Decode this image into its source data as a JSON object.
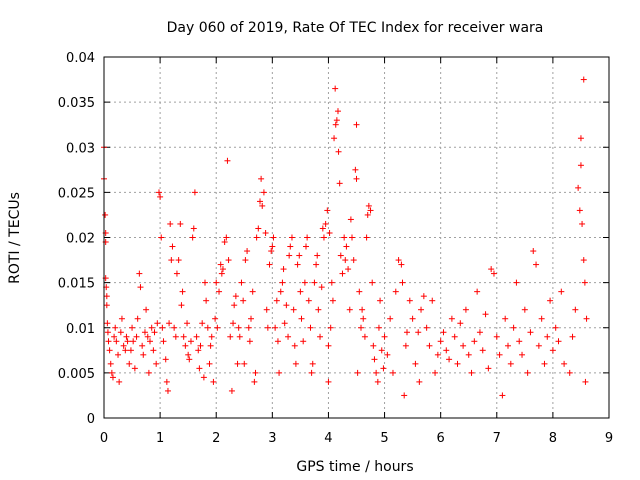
{
  "chart_data": {
    "type": "scatter",
    "title": "Day 060 of 2019, Rate Of TEC Index for receiver wara",
    "xlabel": "GPS time / hours",
    "ylabel": "ROTI / TECUs",
    "xlim": [
      0,
      9
    ],
    "ylim": [
      0,
      0.04
    ],
    "x_ticks": [
      0,
      1,
      2,
      3,
      4,
      5,
      6,
      7,
      8,
      9
    ],
    "y_ticks": [
      0,
      0.005,
      0.01,
      0.015,
      0.02,
      0.025,
      0.03,
      0.035,
      0.04
    ],
    "x_tick_labels": [
      "0",
      "1",
      "2",
      "3",
      "4",
      "5",
      "6",
      "7",
      "8",
      "9"
    ],
    "y_tick_labels": [
      "0",
      "0.005",
      "0.01",
      "0.015",
      "0.02",
      "0.025",
      "0.03",
      "0.035",
      "0.04"
    ],
    "grid": true,
    "marker": "+",
    "color": "#ff0000",
    "series": [
      {
        "name": "ROTI",
        "points": [
          [
            0.0,
            0.03
          ],
          [
            0.0,
            0.0265
          ],
          [
            0.02,
            0.0225
          ],
          [
            0.03,
            0.0205
          ],
          [
            0.03,
            0.0195
          ],
          [
            0.03,
            0.0155
          ],
          [
            0.04,
            0.0145
          ],
          [
            0.05,
            0.0135
          ],
          [
            0.05,
            0.0125
          ],
          [
            0.06,
            0.0105
          ],
          [
            0.07,
            0.0095
          ],
          [
            0.08,
            0.0085
          ],
          [
            0.1,
            0.0075
          ],
          [
            0.12,
            0.006
          ],
          [
            0.14,
            0.005
          ],
          [
            0.16,
            0.0045
          ],
          [
            0.18,
            0.009
          ],
          [
            0.2,
            0.01
          ],
          [
            0.22,
            0.0085
          ],
          [
            0.25,
            0.007
          ],
          [
            0.27,
            0.004
          ],
          [
            0.3,
            0.0095
          ],
          [
            0.32,
            0.011
          ],
          [
            0.35,
            0.008
          ],
          [
            0.38,
            0.0075
          ],
          [
            0.4,
            0.009
          ],
          [
            0.42,
            0.0085
          ],
          [
            0.45,
            0.006
          ],
          [
            0.48,
            0.0075
          ],
          [
            0.5,
            0.01
          ],
          [
            0.52,
            0.0085
          ],
          [
            0.55,
            0.0055
          ],
          [
            0.58,
            0.009
          ],
          [
            0.6,
            0.011
          ],
          [
            0.63,
            0.016
          ],
          [
            0.65,
            0.0145
          ],
          [
            0.68,
            0.008
          ],
          [
            0.7,
            0.007
          ],
          [
            0.73,
            0.0095
          ],
          [
            0.75,
            0.012
          ],
          [
            0.78,
            0.009
          ],
          [
            0.8,
            0.005
          ],
          [
            0.82,
            0.0085
          ],
          [
            0.85,
            0.01
          ],
          [
            0.88,
            0.0075
          ],
          [
            0.9,
            0.0095
          ],
          [
            0.93,
            0.006
          ],
          [
            0.95,
            0.0105
          ],
          [
            0.98,
            0.025
          ],
          [
            1.0,
            0.0245
          ],
          [
            1.02,
            0.02
          ],
          [
            1.04,
            0.01
          ],
          [
            1.06,
            0.0085
          ],
          [
            1.1,
            0.0065
          ],
          [
            1.12,
            0.004
          ],
          [
            1.14,
            0.003
          ],
          [
            1.16,
            0.0105
          ],
          [
            1.18,
            0.0215
          ],
          [
            1.2,
            0.0175
          ],
          [
            1.22,
            0.019
          ],
          [
            1.25,
            0.01
          ],
          [
            1.28,
            0.009
          ],
          [
            1.3,
            0.016
          ],
          [
            1.33,
            0.0175
          ],
          [
            1.36,
            0.0215
          ],
          [
            1.38,
            0.0125
          ],
          [
            1.4,
            0.014
          ],
          [
            1.42,
            0.009
          ],
          [
            1.45,
            0.008
          ],
          [
            1.48,
            0.0105
          ],
          [
            1.5,
            0.007
          ],
          [
            1.52,
            0.0065
          ],
          [
            1.55,
            0.0085
          ],
          [
            1.58,
            0.02
          ],
          [
            1.6,
            0.021
          ],
          [
            1.62,
            0.025
          ],
          [
            1.65,
            0.009
          ],
          [
            1.68,
            0.0075
          ],
          [
            1.7,
            0.0055
          ],
          [
            1.72,
            0.008
          ],
          [
            1.75,
            0.0105
          ],
          [
            1.78,
            0.0045
          ],
          [
            1.8,
            0.015
          ],
          [
            1.82,
            0.013
          ],
          [
            1.85,
            0.01
          ],
          [
            1.88,
            0.006
          ],
          [
            1.9,
            0.008
          ],
          [
            1.92,
            0.009
          ],
          [
            1.95,
            0.004
          ],
          [
            1.98,
            0.011
          ],
          [
            2.0,
            0.015
          ],
          [
            2.02,
            0.01
          ],
          [
            2.05,
            0.014
          ],
          [
            2.08,
            0.017
          ],
          [
            2.1,
            0.016
          ],
          [
            2.12,
            0.0165
          ],
          [
            2.15,
            0.0195
          ],
          [
            2.18,
            0.02
          ],
          [
            2.2,
            0.0285
          ],
          [
            2.22,
            0.0175
          ],
          [
            2.25,
            0.009
          ],
          [
            2.28,
            0.003
          ],
          [
            2.3,
            0.0105
          ],
          [
            2.32,
            0.0125
          ],
          [
            2.35,
            0.0135
          ],
          [
            2.38,
            0.006
          ],
          [
            2.4,
            0.01
          ],
          [
            2.42,
            0.009
          ],
          [
            2.45,
            0.015
          ],
          [
            2.48,
            0.013
          ],
          [
            2.5,
            0.006
          ],
          [
            2.52,
            0.0175
          ],
          [
            2.55,
            0.0185
          ],
          [
            2.58,
            0.01
          ],
          [
            2.6,
            0.0085
          ],
          [
            2.62,
            0.011
          ],
          [
            2.65,
            0.014
          ],
          [
            2.68,
            0.004
          ],
          [
            2.7,
            0.005
          ],
          [
            2.72,
            0.02
          ],
          [
            2.75,
            0.021
          ],
          [
            2.78,
            0.024
          ],
          [
            2.8,
            0.0265
          ],
          [
            2.82,
            0.0235
          ],
          [
            2.85,
            0.025
          ],
          [
            2.88,
            0.0205
          ],
          [
            2.9,
            0.012
          ],
          [
            2.92,
            0.01
          ],
          [
            2.95,
            0.017
          ],
          [
            2.98,
            0.0185
          ],
          [
            3.0,
            0.019
          ],
          [
            3.02,
            0.02
          ],
          [
            3.05,
            0.01
          ],
          [
            3.08,
            0.013
          ],
          [
            3.1,
            0.0085
          ],
          [
            3.12,
            0.005
          ],
          [
            3.15,
            0.014
          ],
          [
            3.18,
            0.015
          ],
          [
            3.2,
            0.0165
          ],
          [
            3.22,
            0.0105
          ],
          [
            3.25,
            0.0125
          ],
          [
            3.28,
            0.009
          ],
          [
            3.3,
            0.018
          ],
          [
            3.32,
            0.019
          ],
          [
            3.35,
            0.02
          ],
          [
            3.38,
            0.012
          ],
          [
            3.4,
            0.008
          ],
          [
            3.42,
            0.006
          ],
          [
            3.45,
            0.017
          ],
          [
            3.48,
            0.018
          ],
          [
            3.5,
            0.014
          ],
          [
            3.52,
            0.011
          ],
          [
            3.55,
            0.0085
          ],
          [
            3.58,
            0.015
          ],
          [
            3.6,
            0.019
          ],
          [
            3.62,
            0.02
          ],
          [
            3.65,
            0.013
          ],
          [
            3.68,
            0.01
          ],
          [
            3.7,
            0.005
          ],
          [
            3.72,
            0.006
          ],
          [
            3.75,
            0.015
          ],
          [
            3.78,
            0.017
          ],
          [
            3.8,
            0.018
          ],
          [
            3.82,
            0.012
          ],
          [
            3.85,
            0.009
          ],
          [
            3.88,
            0.0145
          ],
          [
            3.9,
            0.021
          ],
          [
            3.92,
            0.02
          ],
          [
            3.95,
            0.0215
          ],
          [
            3.98,
            0.023
          ],
          [
            4.0,
            0.004
          ],
          [
            4.0,
            0.008
          ],
          [
            4.02,
            0.0205
          ],
          [
            4.04,
            0.01
          ],
          [
            4.06,
            0.015
          ],
          [
            4.08,
            0.013
          ],
          [
            4.1,
            0.031
          ],
          [
            4.12,
            0.0365
          ],
          [
            4.13,
            0.0325
          ],
          [
            4.15,
            0.033
          ],
          [
            4.17,
            0.034
          ],
          [
            4.18,
            0.0295
          ],
          [
            4.2,
            0.026
          ],
          [
            4.22,
            0.018
          ],
          [
            4.25,
            0.016
          ],
          [
            4.28,
            0.02
          ],
          [
            4.3,
            0.0175
          ],
          [
            4.32,
            0.019
          ],
          [
            4.35,
            0.0165
          ],
          [
            4.38,
            0.012
          ],
          [
            4.4,
            0.022
          ],
          [
            4.42,
            0.02
          ],
          [
            4.45,
            0.0175
          ],
          [
            4.48,
            0.0275
          ],
          [
            4.5,
            0.0265
          ],
          [
            4.5,
            0.0325
          ],
          [
            4.52,
            0.005
          ],
          [
            4.55,
            0.014
          ],
          [
            4.58,
            0.01
          ],
          [
            4.6,
            0.012
          ],
          [
            4.62,
            0.011
          ],
          [
            4.65,
            0.009
          ],
          [
            4.68,
            0.02
          ],
          [
            4.7,
            0.0225
          ],
          [
            4.72,
            0.0235
          ],
          [
            4.75,
            0.023
          ],
          [
            4.78,
            0.015
          ],
          [
            4.8,
            0.008
          ],
          [
            4.82,
            0.0065
          ],
          [
            4.85,
            0.005
          ],
          [
            4.88,
            0.004
          ],
          [
            4.9,
            0.01
          ],
          [
            4.92,
            0.013
          ],
          [
            4.95,
            0.0075
          ],
          [
            4.98,
            0.0055
          ],
          [
            5.0,
            0.009
          ],
          [
            5.05,
            0.007
          ],
          [
            5.1,
            0.011
          ],
          [
            5.15,
            0.005
          ],
          [
            5.2,
            0.014
          ],
          [
            5.25,
            0.0175
          ],
          [
            5.3,
            0.017
          ],
          [
            5.32,
            0.015
          ],
          [
            5.35,
            0.0025
          ],
          [
            5.38,
            0.008
          ],
          [
            5.4,
            0.0095
          ],
          [
            5.45,
            0.013
          ],
          [
            5.5,
            0.011
          ],
          [
            5.55,
            0.006
          ],
          [
            5.6,
            0.0095
          ],
          [
            5.62,
            0.004
          ],
          [
            5.65,
            0.012
          ],
          [
            5.7,
            0.0135
          ],
          [
            5.75,
            0.01
          ],
          [
            5.8,
            0.008
          ],
          [
            5.85,
            0.013
          ],
          [
            5.9,
            0.005
          ],
          [
            5.95,
            0.007
          ],
          [
            6.0,
            0.0085
          ],
          [
            6.05,
            0.0095
          ],
          [
            6.1,
            0.0075
          ],
          [
            6.15,
            0.0065
          ],
          [
            6.2,
            0.011
          ],
          [
            6.25,
            0.009
          ],
          [
            6.3,
            0.006
          ],
          [
            6.35,
            0.0105
          ],
          [
            6.4,
            0.008
          ],
          [
            6.45,
            0.012
          ],
          [
            6.5,
            0.007
          ],
          [
            6.55,
            0.005
          ],
          [
            6.6,
            0.0085
          ],
          [
            6.65,
            0.014
          ],
          [
            6.7,
            0.0095
          ],
          [
            6.75,
            0.0075
          ],
          [
            6.8,
            0.0115
          ],
          [
            6.85,
            0.0055
          ],
          [
            6.9,
            0.0165
          ],
          [
            6.95,
            0.016
          ],
          [
            7.0,
            0.009
          ],
          [
            7.05,
            0.007
          ],
          [
            7.1,
            0.0025
          ],
          [
            7.15,
            0.011
          ],
          [
            7.2,
            0.008
          ],
          [
            7.25,
            0.006
          ],
          [
            7.3,
            0.01
          ],
          [
            7.35,
            0.015
          ],
          [
            7.4,
            0.0085
          ],
          [
            7.45,
            0.007
          ],
          [
            7.5,
            0.012
          ],
          [
            7.55,
            0.005
          ],
          [
            7.6,
            0.0095
          ],
          [
            7.65,
            0.0185
          ],
          [
            7.7,
            0.017
          ],
          [
            7.75,
            0.008
          ],
          [
            7.8,
            0.011
          ],
          [
            7.85,
            0.006
          ],
          [
            7.9,
            0.009
          ],
          [
            7.95,
            0.013
          ],
          [
            8.0,
            0.0075
          ],
          [
            8.05,
            0.01
          ],
          [
            8.1,
            0.0085
          ],
          [
            8.15,
            0.014
          ],
          [
            8.2,
            0.006
          ],
          [
            8.3,
            0.005
          ],
          [
            8.35,
            0.009
          ],
          [
            8.4,
            0.012
          ],
          [
            8.45,
            0.0255
          ],
          [
            8.48,
            0.023
          ],
          [
            8.5,
            0.028
          ],
          [
            8.5,
            0.031
          ],
          [
            8.52,
            0.0215
          ],
          [
            8.55,
            0.0175
          ],
          [
            8.55,
            0.0375
          ],
          [
            8.57,
            0.015
          ],
          [
            8.58,
            0.004
          ],
          [
            8.6,
            0.011
          ]
        ]
      }
    ]
  }
}
